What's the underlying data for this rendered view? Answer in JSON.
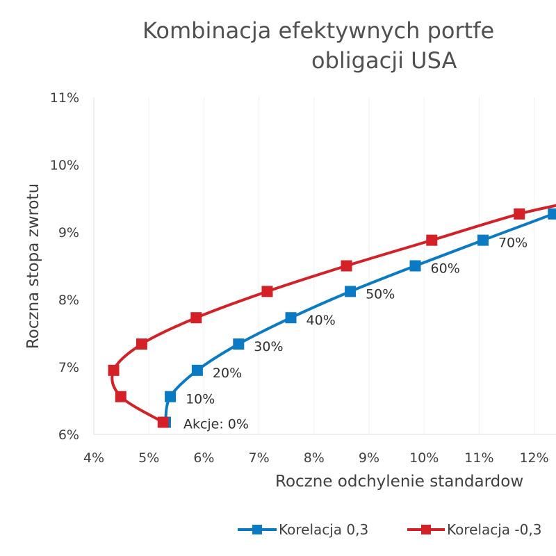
{
  "chart_data": {
    "type": "scatter",
    "title_line1": "Kombinacja efektywnych portfe",
    "title_line2": "obligacji USA",
    "xlabel": "Roczne odchylenie standardow",
    "ylabel": "Roczna stopa zwrotu",
    "xlim": [
      4,
      12.8
    ],
    "ylim": [
      6,
      11
    ],
    "x_ticks": [
      4,
      5,
      6,
      7,
      8,
      9,
      10,
      11,
      12
    ],
    "y_ticks": [
      6,
      7,
      8,
      9,
      10,
      11
    ],
    "x_tick_labels": [
      "4%",
      "5%",
      "6%",
      "7%",
      "8%",
      "9%",
      "10%",
      "11%",
      "12%"
    ],
    "y_tick_labels": [
      "6%",
      "7%",
      "8%",
      "9%",
      "10%",
      "11%"
    ],
    "grid": "vertical",
    "legend_position": "bottom",
    "series": [
      {
        "name": "Korelacja 0,3",
        "color": "#0a7ac4",
        "points": [
          {
            "x": 5.3,
            "y": 6.18
          },
          {
            "x": 5.39,
            "y": 6.56
          },
          {
            "x": 5.88,
            "y": 6.95
          },
          {
            "x": 6.63,
            "y": 7.34
          },
          {
            "x": 7.58,
            "y": 7.73
          },
          {
            "x": 8.66,
            "y": 8.12
          },
          {
            "x": 9.84,
            "y": 8.5
          },
          {
            "x": 11.07,
            "y": 8.88
          },
          {
            "x": 12.35,
            "y": 9.27
          },
          {
            "x": 12.85,
            "y": 9.42
          }
        ],
        "labels": [
          "Akcje: 0%",
          "10%",
          "20%",
          "30%",
          "40%",
          "50%",
          "60%",
          "70%",
          "",
          ""
        ]
      },
      {
        "name": "Korelacja -0,3",
        "color": "#d42027",
        "points": [
          {
            "x": 5.26,
            "y": 6.18
          },
          {
            "x": 4.49,
            "y": 6.56
          },
          {
            "x": 4.36,
            "y": 6.95
          },
          {
            "x": 4.87,
            "y": 7.34
          },
          {
            "x": 5.86,
            "y": 7.73
          },
          {
            "x": 7.15,
            "y": 8.12
          },
          {
            "x": 8.59,
            "y": 8.5
          },
          {
            "x": 10.14,
            "y": 8.88
          },
          {
            "x": 11.73,
            "y": 9.27
          },
          {
            "x": 12.85,
            "y": 9.47
          }
        ]
      }
    ]
  }
}
